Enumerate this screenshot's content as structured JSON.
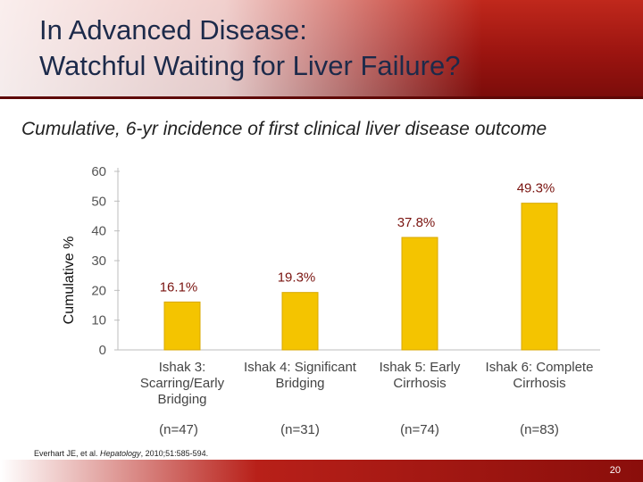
{
  "slide": {
    "title_line1": "In Advanced Disease:",
    "title_line2": "Watchful Waiting for Liver Failure?",
    "subtitle": "Cumulative, 6-yr incidence of first clinical liver disease outcome",
    "citation_authors": "Everhart JE, et al. ",
    "citation_journal": "Hepatology",
    "citation_rest": ", 2010;51:585-594.",
    "page_number": "20"
  },
  "colors": {
    "bar": "#f4c400",
    "bar_edge": "#d9a800",
    "label": "#7a1410"
  },
  "chart_data": {
    "type": "bar",
    "title": "Cumulative, 6-yr incidence of first clinical liver disease outcome",
    "ylabel": "Cumulative %",
    "xlabel": "",
    "ylim": [
      0,
      60
    ],
    "yticks": [
      "0",
      "10",
      "20",
      "30",
      "40",
      "50",
      "60"
    ],
    "grid": false,
    "categories": [
      {
        "lines": [
          "Ishak 3:",
          "Scarring/Early",
          "Bridging"
        ],
        "n": "(n=47)"
      },
      {
        "lines": [
          "Ishak 4: Significant",
          "Bridging"
        ],
        "n": "(n=31)"
      },
      {
        "lines": [
          "Ishak 5: Early",
          "Cirrhosis"
        ],
        "n": "(n=74)"
      },
      {
        "lines": [
          "Ishak 6: Complete",
          "Cirrhosis"
        ],
        "n": "(n=83)"
      }
    ],
    "values": [
      16.1,
      19.3,
      37.8,
      49.3
    ],
    "labels": [
      "16.1%",
      "19.3%",
      "37.8%",
      "49.3%"
    ]
  }
}
